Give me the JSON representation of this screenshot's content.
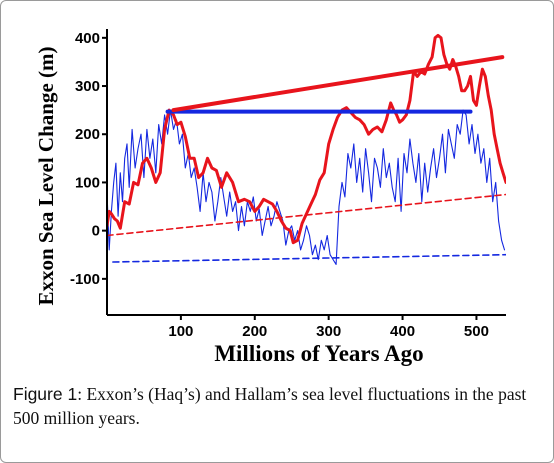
{
  "caption": {
    "label": "Figure 1",
    "text": ": Exxon’s (Haq’s) and Hallam’s sea level fluctuations in the past 500 million years."
  },
  "chart_data": {
    "type": "line",
    "title": "",
    "xlabel": "Millions of Years Ago",
    "ylabel": "Exxon Sea Level Change (m)",
    "xlim": [
      0,
      540
    ],
    "ylim": [
      -175,
      410
    ],
    "xticks": [
      100,
      200,
      300,
      400,
      500
    ],
    "yticks": [
      -100,
      0,
      100,
      200,
      300,
      400
    ],
    "grid": false,
    "legend": "none",
    "colors": {
      "red": "#e8141c",
      "blue": "#1428e0"
    },
    "series": [
      {
        "style": "red-solid",
        "x": [
          0,
          3,
          6,
          10,
          14,
          18,
          24,
          30,
          36,
          42,
          48,
          54,
          60,
          66,
          72,
          78,
          84,
          90,
          95,
          100,
          106,
          112,
          118,
          124,
          130,
          136,
          142,
          148,
          155,
          162,
          170,
          178,
          186,
          193,
          200,
          206,
          212,
          218,
          224,
          230,
          236,
          242,
          248,
          252,
          258,
          264,
          270,
          276,
          282,
          288,
          294,
          300,
          306,
          312,
          318,
          324,
          330,
          336,
          342,
          348,
          354,
          360,
          366,
          372,
          378,
          384,
          388,
          392,
          396,
          400,
          405,
          410,
          415,
          420,
          425,
          430,
          435,
          440,
          444,
          448,
          452,
          456,
          460,
          464,
          468,
          472,
          476,
          480,
          484,
          488,
          492,
          496,
          500,
          504,
          508,
          512,
          516,
          520,
          524,
          528,
          532,
          536,
          540
        ],
        "y": [
          10,
          40,
          35,
          25,
          20,
          5,
          60,
          55,
          100,
          95,
          140,
          150,
          130,
          100,
          120,
          210,
          250,
          240,
          220,
          225,
          195,
          150,
          150,
          110,
          120,
          150,
          130,
          125,
          90,
          120,
          100,
          60,
          65,
          60,
          40,
          50,
          65,
          60,
          55,
          40,
          20,
          5,
          0,
          -25,
          -20,
          15,
          35,
          55,
          75,
          105,
          120,
          180,
          210,
          235,
          250,
          255,
          245,
          235,
          230,
          220,
          200,
          210,
          215,
          205,
          230,
          265,
          250,
          240,
          225,
          230,
          240,
          270,
          330,
          320,
          330,
          325,
          345,
          360,
          400,
          405,
          400,
          365,
          345,
          335,
          355,
          340,
          320,
          290,
          290,
          300,
          320,
          270,
          260,
          300,
          335,
          320,
          280,
          250,
          200,
          170,
          140,
          120,
          100
        ]
      },
      {
        "style": "red-thick-trend",
        "x": [
          90,
          535
        ],
        "y": [
          250,
          360
        ]
      },
      {
        "style": "blue-thick-level",
        "x": [
          82,
          492
        ],
        "y": [
          247,
          247
        ]
      },
      {
        "style": "red-dashed-trend",
        "x": [
          0,
          540
        ],
        "y": [
          -10,
          75
        ]
      },
      {
        "style": "blue-dashed-trend",
        "x": [
          8,
          540
        ],
        "y": [
          -65,
          -50
        ]
      },
      {
        "style": "blue-solid",
        "x": [
          0,
          3,
          6,
          9,
          12,
          15,
          18,
          21,
          24,
          27,
          30,
          34,
          38,
          42,
          46,
          50,
          54,
          58,
          62,
          66,
          70,
          74,
          78,
          82,
          86,
          90,
          94,
          98,
          102,
          106,
          110,
          114,
          118,
          122,
          126,
          130,
          134,
          138,
          142,
          146,
          150,
          154,
          158,
          162,
          166,
          170,
          174,
          178,
          182,
          186,
          190,
          194,
          198,
          202,
          206,
          210,
          214,
          218,
          222,
          226,
          230,
          234,
          238,
          242,
          246,
          250,
          254,
          258,
          262,
          266,
          270,
          274,
          278,
          282,
          286,
          290,
          294,
          298,
          302,
          306,
          310,
          314,
          318,
          322,
          326,
          330,
          334,
          338,
          342,
          346,
          350,
          354,
          358,
          362,
          366,
          370,
          374,
          378,
          382,
          386,
          390,
          394,
          398,
          402,
          406,
          410,
          414,
          418,
          422,
          426,
          430,
          434,
          438,
          442,
          446,
          450,
          454,
          458,
          462,
          466,
          470,
          474,
          478,
          482,
          486,
          490,
          494,
          498,
          502,
          506,
          510,
          514,
          518,
          522,
          526,
          530,
          534,
          538
        ],
        "y": [
          80,
          -40,
          40,
          100,
          140,
          30,
          120,
          60,
          150,
          180,
          90,
          210,
          130,
          170,
          200,
          110,
          210,
          150,
          190,
          120,
          220,
          180,
          240,
          200,
          250,
          210,
          230,
          180,
          200,
          130,
          160,
          110,
          130,
          90,
          40,
          120,
          60,
          100,
          80,
          20,
          60,
          110,
          70,
          30,
          80,
          40,
          60,
          0,
          50,
          10,
          60,
          40,
          70,
          20,
          45,
          -10,
          20,
          50,
          10,
          30,
          60,
          40,
          20,
          -30,
          0,
          10,
          -20,
          0,
          -40,
          -20,
          10,
          -10,
          -50,
          -30,
          -60,
          -20,
          -40,
          -10,
          -50,
          -60,
          -70,
          50,
          100,
          70,
          160,
          130,
          180,
          100,
          150,
          80,
          170,
          120,
          60,
          150,
          130,
          90,
          170,
          110,
          140,
          90,
          60,
          150,
          40,
          160,
          120,
          190,
          140,
          100,
          160,
          60,
          140,
          80,
          130,
          170,
          110,
          150,
          200,
          120,
          210,
          180,
          150,
          220,
          200,
          250,
          240,
          180,
          220,
          160,
          200,
          140,
          170,
          100,
          150,
          60,
          100,
          20,
          -20,
          -40
        ]
      }
    ]
  }
}
